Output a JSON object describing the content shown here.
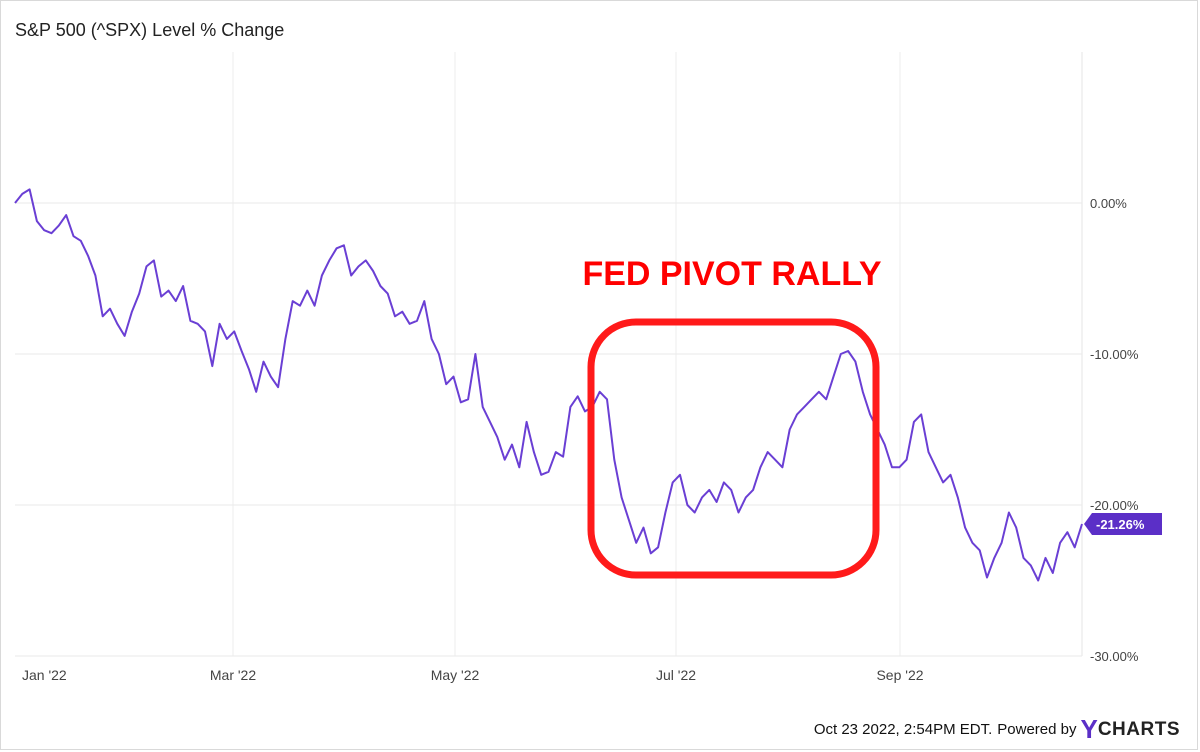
{
  "chart_data": {
    "type": "line",
    "title": "S&P 500 (^SPX) Level % Change",
    "x_tick_labels": [
      "Jan '22",
      "Mar '22",
      "May '22",
      "Jul '22",
      "Sep '22"
    ],
    "y_tick_labels": [
      "0.00%",
      "-10.00%",
      "-20.00%",
      "-30.00%"
    ],
    "y_ticks": [
      0,
      -10,
      -20,
      -30
    ],
    "ylim": [
      -30,
      10
    ],
    "grid": true,
    "series": [
      {
        "color": "#6a3fd4",
        "last_value_label": "-21.26%",
        "values": [
          0,
          0.6,
          0.9,
          -1.2,
          -1.8,
          -2.0,
          -1.5,
          -0.8,
          -2.2,
          -2.5,
          -3.5,
          -4.8,
          -7.5,
          -7.0,
          -8.0,
          -8.8,
          -7.2,
          -6.0,
          -4.2,
          -3.8,
          -6.2,
          -5.8,
          -6.5,
          -5.5,
          -7.8,
          -8.0,
          -8.5,
          -10.8,
          -8.0,
          -9.0,
          -8.5,
          -9.8,
          -11.0,
          -12.5,
          -10.5,
          -11.5,
          -12.2,
          -9.0,
          -6.5,
          -6.8,
          -5.8,
          -6.8,
          -4.8,
          -3.8,
          -3.0,
          -2.8,
          -4.8,
          -4.2,
          -3.8,
          -4.5,
          -5.5,
          -6.0,
          -7.5,
          -7.2,
          -8.0,
          -7.8,
          -6.5,
          -9.0,
          -10.0,
          -12.0,
          -11.5,
          -13.2,
          -13.0,
          -10.0,
          -13.5,
          -14.5,
          -15.5,
          -17.0,
          -16.0,
          -17.5,
          -14.5,
          -16.5,
          -18.0,
          -17.8,
          -16.5,
          -16.8,
          -13.5,
          -12.8,
          -13.8,
          -13.5,
          -12.5,
          -13.0,
          -17.0,
          -19.5,
          -21.0,
          -22.5,
          -21.5,
          -23.2,
          -22.8,
          -20.5,
          -18.5,
          -18.0,
          -20.0,
          -20.5,
          -19.5,
          -19.0,
          -19.8,
          -18.5,
          -19.0,
          -20.5,
          -19.5,
          -19.0,
          -17.5,
          -16.5,
          -17.0,
          -17.5,
          -15.0,
          -14.0,
          -13.5,
          -13.0,
          -12.5,
          -13.0,
          -11.5,
          -10.0,
          -9.8,
          -10.5,
          -12.5,
          -14.0,
          -15.0,
          -16.0,
          -17.5,
          -17.5,
          -17.0,
          -14.5,
          -14.0,
          -16.5,
          -17.5,
          -18.5,
          -18.0,
          -19.5,
          -21.5,
          -22.5,
          -23.0,
          -24.8,
          -23.5,
          -22.5,
          -20.5,
          -21.5,
          -23.5,
          -24.0,
          -25.0,
          -23.5,
          -24.5,
          -22.5,
          -21.8,
          -22.8,
          -21.26
        ]
      }
    ],
    "annotations": [
      {
        "text": "FED PIVOT RALLY",
        "color": "#ff0000"
      }
    ]
  },
  "footer": {
    "timestamp": "Oct 23 2022, 2:54PM EDT.",
    "powered_by": "Powered by",
    "brand_y": "Y",
    "brand_rest": "CHARTS"
  }
}
